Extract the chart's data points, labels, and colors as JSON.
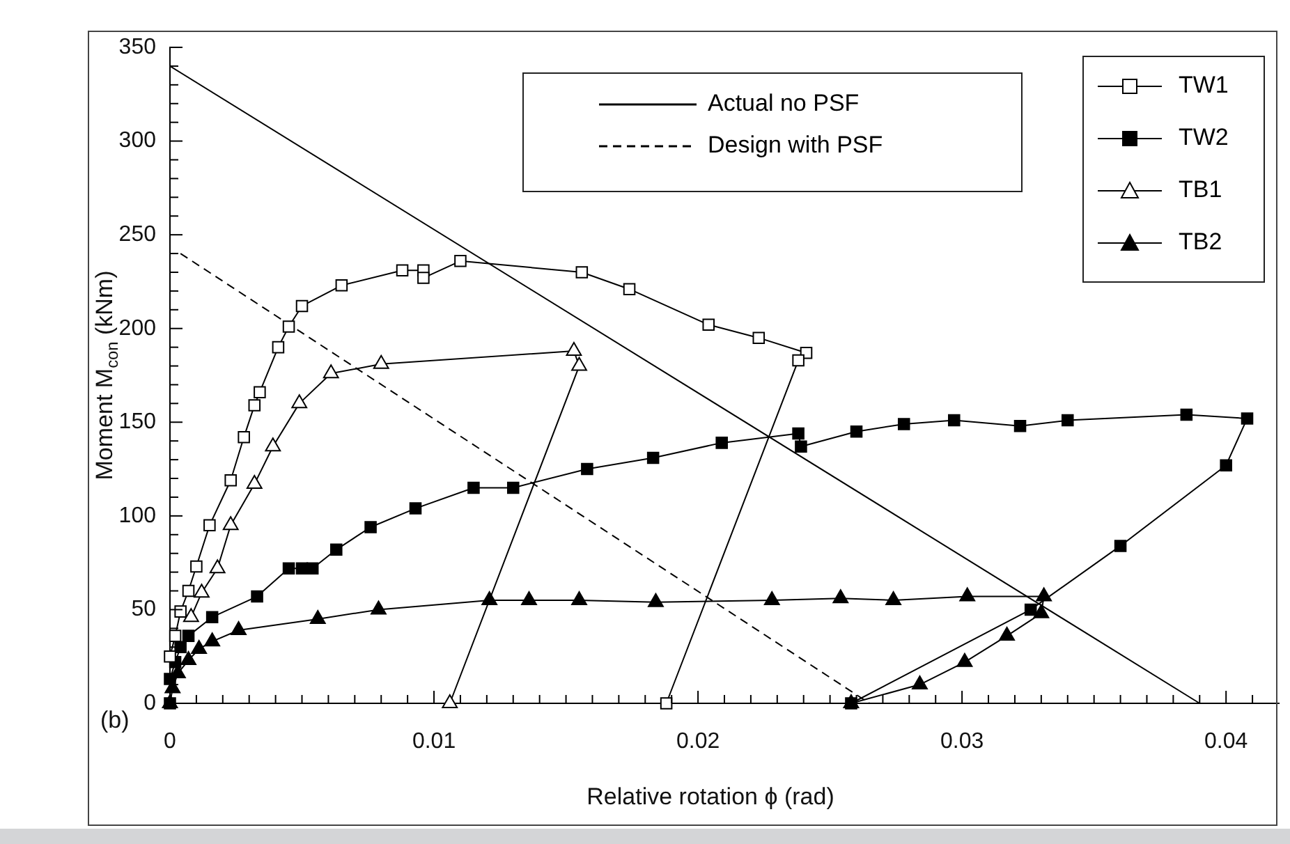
{
  "chart_data": {
    "type": "scatter",
    "xlabel": "Relative rotation ϕ (rad)",
    "ylabel": "Moment M$_{con}$ (kNm)",
    "annotations": [
      "(b)"
    ],
    "xlim": [
      0,
      0.042
    ],
    "ylim": [
      0,
      350
    ],
    "xticks": [
      0,
      {
        "value": 0.001,
        "label": null
      },
      {
        "value": 0.002,
        "label": null
      },
      {
        "value": 0.003,
        "label": null
      },
      {
        "value": 0.004,
        "label": null
      },
      {
        "value": 0.005,
        "label": null
      },
      {
        "value": 0.006,
        "label": null
      },
      {
        "value": 0.007,
        "label": null
      },
      {
        "value": 0.008,
        "label": null
      },
      {
        "value": 0.009,
        "label": null
      },
      0.01,
      {
        "value": 0.011,
        "label": null
      },
      {
        "value": 0.012,
        "label": null
      },
      {
        "value": 0.013,
        "label": null
      },
      {
        "value": 0.014,
        "label": null
      },
      {
        "value": 0.015,
        "label": null
      },
      {
        "value": 0.016,
        "label": null
      },
      {
        "value": 0.017,
        "label": null
      },
      {
        "value": 0.018,
        "label": null
      },
      {
        "value": 0.019,
        "label": null
      },
      0.02,
      {
        "value": 0.021,
        "label": null
      },
      {
        "value": 0.022,
        "label": null
      },
      {
        "value": 0.023,
        "label": null
      },
      {
        "value": 0.024,
        "label": null
      },
      {
        "value": 0.025,
        "label": null
      },
      {
        "value": 0.026,
        "label": null
      },
      {
        "value": 0.027,
        "label": null
      },
      {
        "value": 0.028,
        "label": null
      },
      {
        "value": 0.029,
        "label": null
      },
      0.03,
      {
        "value": 0.031,
        "label": null
      },
      {
        "value": 0.032,
        "label": null
      },
      {
        "value": 0.033,
        "label": null
      },
      {
        "value": 0.034,
        "label": null
      },
      {
        "value": 0.035,
        "label": null
      },
      {
        "value": 0.036,
        "label": null
      },
      {
        "value": 0.037,
        "label": null
      },
      {
        "value": 0.038,
        "label": null
      },
      {
        "value": 0.039,
        "label": null
      },
      0.04,
      {
        "value": 0.041,
        "label": null
      }
    ],
    "yticks": [
      0,
      {
        "value": 10,
        "label": null
      },
      {
        "value": 20,
        "label": null
      },
      {
        "value": 30,
        "label": null
      },
      {
        "value": 40,
        "label": null
      },
      50,
      {
        "value": 60,
        "label": null
      },
      {
        "value": 70,
        "label": null
      },
      {
        "value": 80,
        "label": null
      },
      {
        "value": 90,
        "label": null
      },
      100,
      {
        "value": 110,
        "label": null
      },
      {
        "value": 120,
        "label": null
      },
      {
        "value": 130,
        "label": null
      },
      {
        "value": 140,
        "label": null
      },
      150,
      {
        "value": 160,
        "label": null
      },
      {
        "value": 170,
        "label": null
      },
      {
        "value": 180,
        "label": null
      },
      {
        "value": 190,
        "label": null
      },
      200,
      {
        "value": 210,
        "label": null
      },
      {
        "value": 220,
        "label": null
      },
      {
        "value": 230,
        "label": null
      },
      {
        "value": 240,
        "label": null
      },
      250,
      {
        "value": 260,
        "label": null
      },
      {
        "value": 270,
        "label": null
      },
      {
        "value": 280,
        "label": null
      },
      {
        "value": 290,
        "label": null
      },
      300,
      {
        "value": 310,
        "label": null
      },
      {
        "value": 320,
        "label": null
      },
      {
        "value": 330,
        "label": null
      },
      {
        "value": 340,
        "label": null
      },
      350
    ],
    "grid": false,
    "legend": "top right",
    "series": [
      {
        "name": "Actual no PSF",
        "type": "line",
        "color": "#000000",
        "marker": "none",
        "line_style": "solid",
        "x": [
          0,
          0.039
        ],
        "values": [
          340,
          0
        ]
      },
      {
        "name": "Design with PSF",
        "type": "line",
        "color": "#000000",
        "marker": "none",
        "line_style": "dashed",
        "x": [
          0.0004,
          0.0265
        ],
        "values": [
          240,
          0
        ]
      },
      {
        "name": "TW1",
        "type": "line",
        "color": "#000000",
        "marker": "square",
        "colors": [
          "#ffffff",
          "#ffffff",
          "#ffffff",
          "#ffffff",
          "#ffffff",
          "#ffffff",
          "#ffffff",
          "#ffffff",
          "#ffffff",
          "#ffffff",
          "#ffffff",
          "#ffffff",
          "#ffffff",
          "#ffffff",
          "#ffffff",
          "#ffffff",
          "#ffffff",
          "#ffffff",
          "#ffffff",
          "#ffffff",
          "#ffffff",
          "#ffffff",
          "#ffffff",
          "#ffffff",
          "#ffffff"
        ],
        "line_style": "solid",
        "x": [
          0,
          0.0002,
          0.0004,
          0.0007,
          0.001,
          0.0015,
          0.0023,
          0.0028,
          0.0032,
          0.0034,
          0.0041,
          0.0045,
          0.005,
          0.0065,
          0.0088,
          0.0096,
          0.0096,
          0.011,
          0.0156,
          0.0174,
          0.0204,
          0.0223,
          0.0241,
          0.0238,
          0.0188
        ],
        "values": [
          25,
          36,
          49,
          60,
          73,
          95,
          119,
          142,
          159,
          166,
          190,
          201,
          212,
          223,
          231,
          231,
          227,
          236,
          230,
          221,
          202,
          195,
          187,
          183,
          0
        ]
      },
      {
        "name": "TW2",
        "type": "line",
        "color": "#000000",
        "marker": "square",
        "line_style": "solid",
        "x": [
          0,
          0,
          0.0002,
          0.0004,
          0.0007,
          0.0016,
          0.0033,
          0.0045,
          0.005,
          0.0054,
          0.0063,
          0.0076,
          0.0093,
          0.0115,
          0.013,
          0.0158,
          0.0183,
          0.0209,
          0.0238,
          0.0239,
          0.026,
          0.0278,
          0.0297,
          0.0322,
          0.034,
          0.0385,
          0.0408,
          0.04,
          0.036,
          0.0326,
          0.0258
        ],
        "values": [
          0,
          13,
          22,
          30,
          36,
          46,
          57,
          72,
          72,
          72,
          82,
          94,
          104,
          115,
          115,
          125,
          131,
          139,
          144,
          137,
          145,
          149,
          151,
          148,
          151,
          154,
          152,
          127,
          84,
          50,
          0
        ]
      },
      {
        "name": "TB1",
        "type": "line",
        "color": "#000000",
        "marker": "triangle",
        "colors": [
          "#ffffff",
          "#ffffff",
          "#ffffff",
          "#ffffff",
          "#ffffff",
          "#ffffff",
          "#ffffff",
          "#ffffff",
          "#ffffff",
          "#ffffff",
          "#ffffff",
          "#ffffff"
        ],
        "line_style": "solid",
        "x": [
          0.0008,
          0.0012,
          0.0018,
          0.0023,
          0.0032,
          0.0039,
          0.0049,
          0.0061,
          0.008,
          0.0153,
          0.0155,
          0.0106
        ],
        "values": [
          46,
          59,
          72,
          95,
          117,
          137,
          160,
          176,
          181,
          188,
          180,
          0
        ]
      },
      {
        "name": "TB2",
        "type": "line",
        "color": "#000000",
        "marker": "triangle",
        "line_style": "solid",
        "x": [
          0,
          0.0001,
          0.0003,
          0.0007,
          0.0011,
          0.0016,
          0.0026,
          0.0056,
          0.0079,
          0.0121,
          0.0136,
          0.0155,
          0.0184,
          0.0228,
          0.0254,
          0.0274,
          0.0302,
          0.0331,
          0.033,
          0.0317,
          0.0301,
          0.0284,
          0.0258
        ],
        "values": [
          0,
          8,
          16,
          23,
          29,
          33,
          39,
          45,
          50,
          55,
          55,
          55,
          54,
          55,
          56,
          55,
          57,
          57,
          48,
          36,
          22,
          10,
          0
        ]
      }
    ]
  }
}
